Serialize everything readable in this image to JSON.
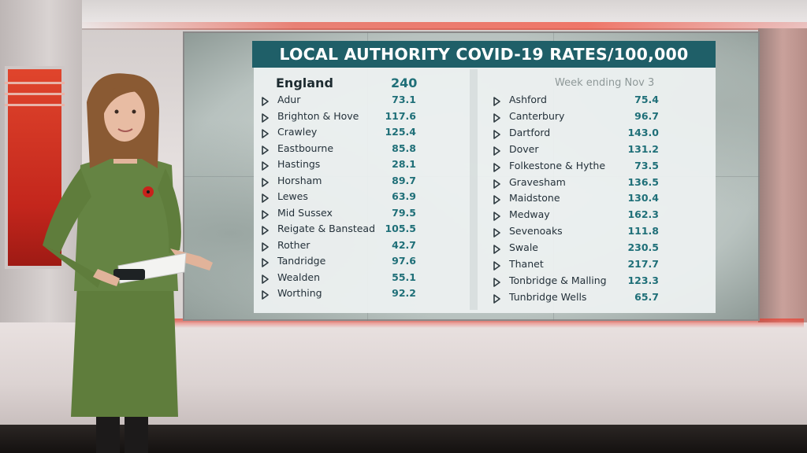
{
  "graphic": {
    "title": "LOCAL AUTHORITY COVID-19 RATES/100,000",
    "week_label": "Week ending Nov 3",
    "england": {
      "name": "England",
      "value": "240"
    },
    "left_column": [
      {
        "name": "Adur",
        "value": "73.1"
      },
      {
        "name": "Brighton & Hove",
        "value": "117.6"
      },
      {
        "name": "Crawley",
        "value": "125.4"
      },
      {
        "name": "Eastbourne",
        "value": "85.8"
      },
      {
        "name": "Hastings",
        "value": "28.1"
      },
      {
        "name": "Horsham",
        "value": "89.7"
      },
      {
        "name": "Lewes",
        "value": "63.9"
      },
      {
        "name": "Mid Sussex",
        "value": "79.5"
      },
      {
        "name": "Reigate & Banstead",
        "value": "105.5"
      },
      {
        "name": "Rother",
        "value": "42.7"
      },
      {
        "name": "Tandridge",
        "value": "97.6"
      },
      {
        "name": "Wealden",
        "value": "55.1"
      },
      {
        "name": "Worthing",
        "value": "92.2"
      }
    ],
    "right_column": [
      {
        "name": "Ashford",
        "value": "75.4"
      },
      {
        "name": "Canterbury",
        "value": "96.7"
      },
      {
        "name": "Dartford",
        "value": "143.0"
      },
      {
        "name": "Dover",
        "value": "131.2"
      },
      {
        "name": "Folkestone & Hythe",
        "value": "73.5"
      },
      {
        "name": "Gravesham",
        "value": "136.5"
      },
      {
        "name": "Maidstone",
        "value": "130.4"
      },
      {
        "name": "Medway",
        "value": "162.3"
      },
      {
        "name": "Sevenoaks",
        "value": "111.8"
      },
      {
        "name": "Swale",
        "value": "230.5"
      },
      {
        "name": "Thanet",
        "value": "217.7"
      },
      {
        "name": "Tonbridge & Malling",
        "value": "123.3"
      },
      {
        "name": "Tunbridge Wells",
        "value": "65.7"
      }
    ],
    "colors": {
      "title_bar": "#1f5f68",
      "value_text": "#1f6f78",
      "name_text": "#24313a",
      "studio_red": "#e0452c"
    }
  },
  "scene": {
    "presenter_icon": "presenter-figure",
    "arrow_icon": "triangle-right-icon"
  }
}
